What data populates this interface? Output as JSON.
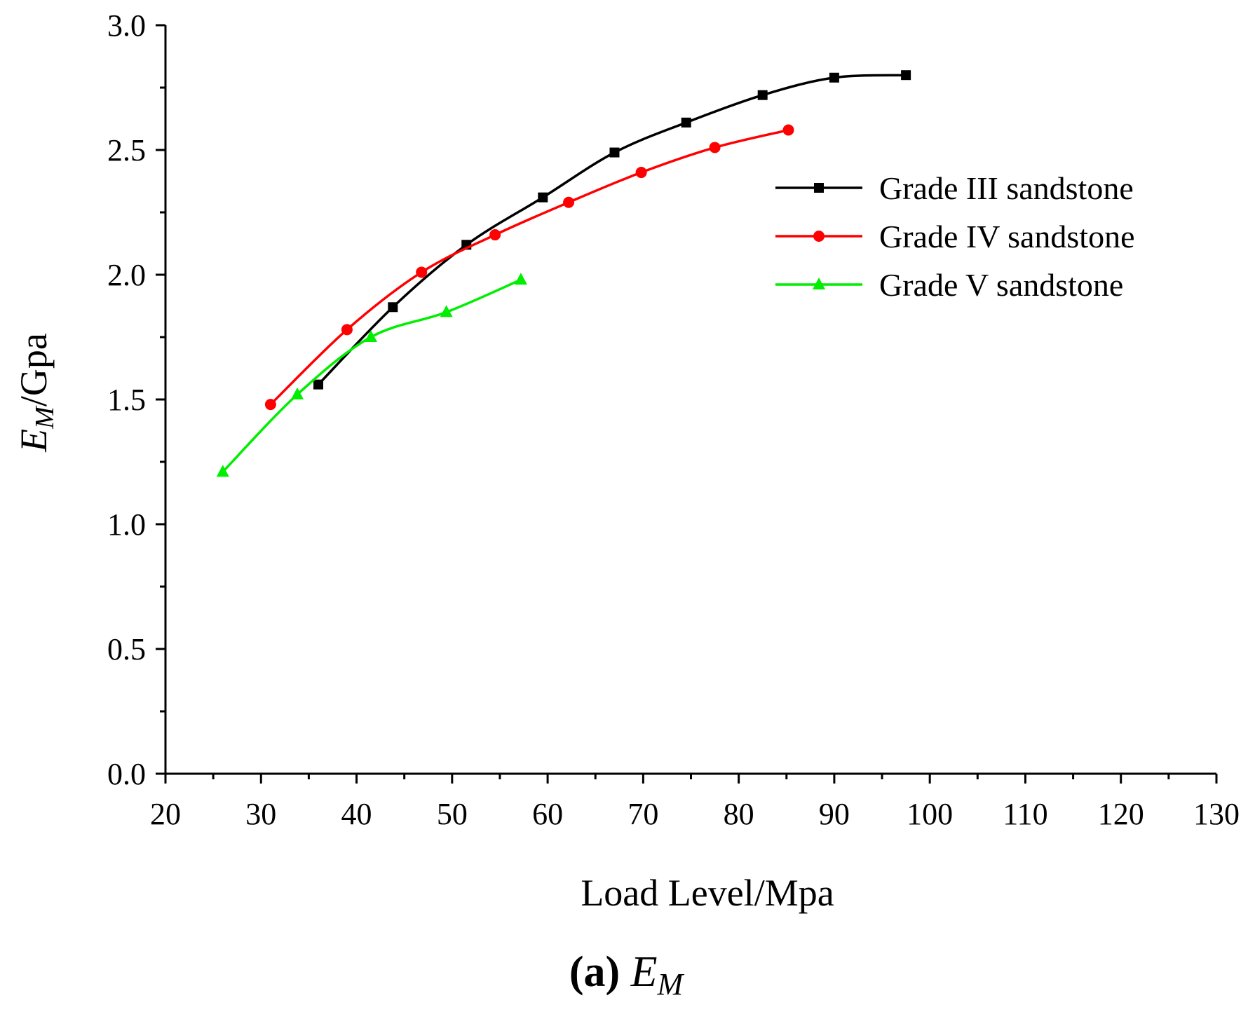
{
  "chart_data": {
    "type": "line",
    "title": "",
    "xlabel": "Load Level/Mpa",
    "ylabel": {
      "symbol": "E",
      "subscript": "M",
      "unit": "/Gpa"
    },
    "xlim": [
      20,
      130
    ],
    "ylim": [
      0.0,
      3.0
    ],
    "xticks": [
      "20",
      "30",
      "40",
      "50",
      "60",
      "70",
      "80",
      "90",
      "100",
      "110",
      "120",
      "130"
    ],
    "yticks": [
      "0.0",
      "0.5",
      "1.0",
      "1.5",
      "2.0",
      "2.5",
      "3.0"
    ],
    "grid": false,
    "legend_position": "top-right",
    "series": [
      {
        "name": "Grade III sandstone",
        "color": "#000000",
        "marker": "square",
        "x": [
          36.0,
          43.8,
          51.5,
          59.5,
          67.0,
          74.5,
          82.5,
          90.0,
          97.5
        ],
        "y": [
          1.56,
          1.87,
          2.12,
          2.31,
          2.49,
          2.61,
          2.72,
          2.79,
          2.8
        ]
      },
      {
        "name": "Grade IV sandstone",
        "color": "#ff0000",
        "marker": "circle",
        "x": [
          31.0,
          39.0,
          46.8,
          54.5,
          62.2,
          69.8,
          77.5,
          85.2
        ],
        "y": [
          1.48,
          1.78,
          2.01,
          2.16,
          2.29,
          2.41,
          2.51,
          2.58
        ]
      },
      {
        "name": "Grade V sandstone",
        "color": "#00ee00",
        "marker": "triangle",
        "x": [
          26.0,
          33.8,
          41.5,
          49.4,
          57.2
        ],
        "y": [
          1.21,
          1.52,
          1.75,
          1.85,
          1.98
        ]
      }
    ]
  },
  "caption": {
    "label": "(a)",
    "symbol": "E",
    "subscript": "M"
  }
}
